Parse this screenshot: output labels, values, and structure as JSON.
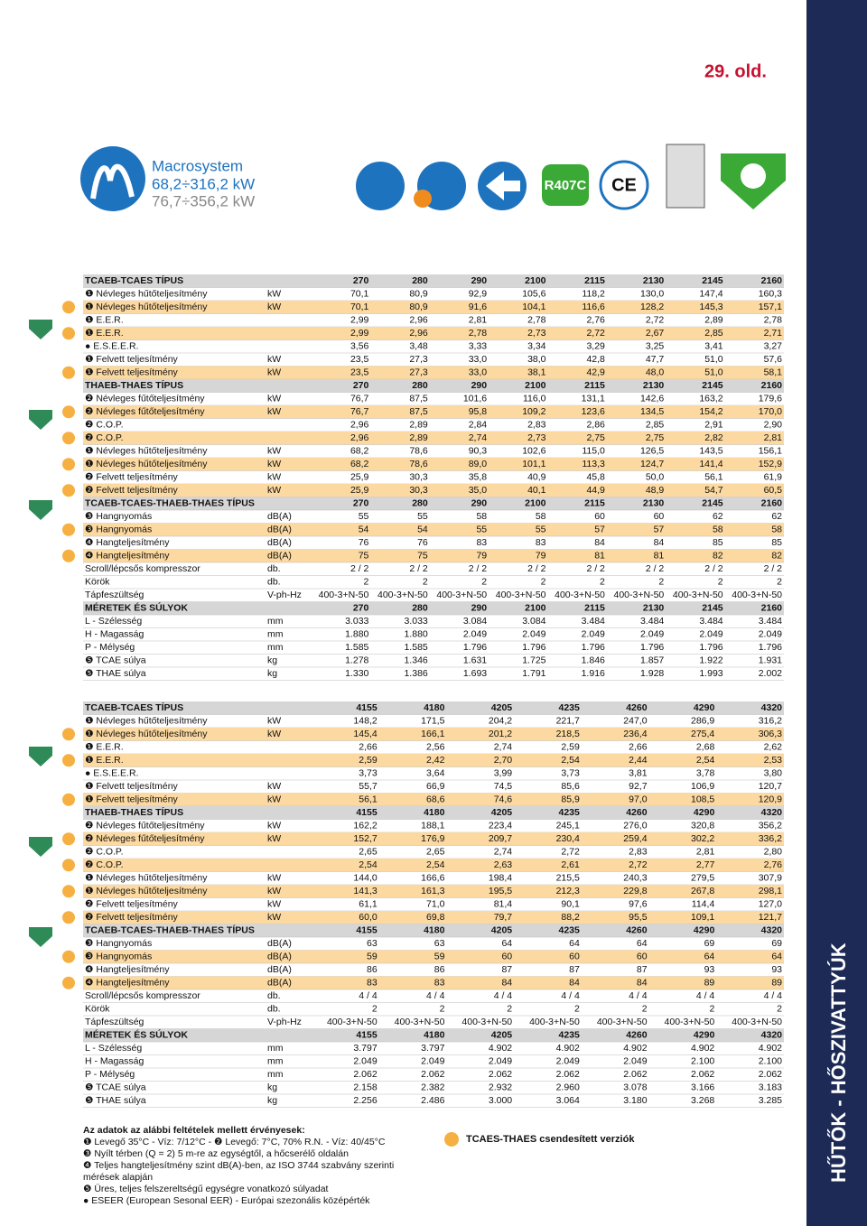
{
  "header": {
    "page": "29. old.",
    "brand": "Macrosystem",
    "range_cooling": "68,2÷316,2 kW",
    "range_heating": "76,7÷356,2 kW",
    "refrigerant": "R407C",
    "side": "HŰTŐK - HŐSZIVATTYÚK"
  },
  "tables": [
    {
      "rows": [
        {
          "header": true,
          "label": "TCAEB-TCAES TÍPUS",
          "values": [
            "270",
            "280",
            "290",
            "2100",
            "2115",
            "2130",
            "2145",
            "2160"
          ]
        },
        {
          "label": "❶ Névleges hűtőteljesítmény",
          "unit": "kW",
          "values": [
            "70,1",
            "80,9",
            "92,9",
            "105,6",
            "118,2",
            "130,0",
            "147,4",
            "160,3"
          ]
        },
        {
          "highlight": true,
          "label": "❶ Névleges hűtőteljesítmény",
          "unit": "kW",
          "values": [
            "70,1",
            "80,9",
            "91,6",
            "104,1",
            "116,6",
            "128,2",
            "145,3",
            "157,1"
          ]
        },
        {
          "label": "❶ E.E.R.",
          "values": [
            "2,99",
            "2,96",
            "2,81",
            "2,78",
            "2,76",
            "2,72",
            "2,89",
            "2,78"
          ]
        },
        {
          "highlight": true,
          "label": "❶ E.E.R.",
          "values": [
            "2,99",
            "2,96",
            "2,78",
            "2,73",
            "2,72",
            "2,67",
            "2,85",
            "2,71"
          ]
        },
        {
          "label": "● E.S.E.E.R.",
          "values": [
            "3,56",
            "3,48",
            "3,33",
            "3,34",
            "3,29",
            "3,25",
            "3,41",
            "3,27"
          ]
        },
        {
          "label": "❶ Felvett teljesítmény",
          "unit": "kW",
          "values": [
            "23,5",
            "27,3",
            "33,0",
            "38,0",
            "42,8",
            "47,7",
            "51,0",
            "57,6"
          ]
        },
        {
          "highlight": true,
          "label": "❶ Felvett teljesítmény",
          "unit": "kW",
          "values": [
            "23,5",
            "27,3",
            "33,0",
            "38,1",
            "42,9",
            "48,0",
            "51,0",
            "58,1"
          ]
        },
        {
          "header": true,
          "label": "THAEB-THAES TÍPUS",
          "values": [
            "270",
            "280",
            "290",
            "2100",
            "2115",
            "2130",
            "2145",
            "2160"
          ]
        },
        {
          "label": "❷ Névleges fűtőteljesítmény",
          "unit": "kW",
          "values": [
            "76,7",
            "87,5",
            "101,6",
            "116,0",
            "131,1",
            "142,6",
            "163,2",
            "179,6"
          ]
        },
        {
          "highlight": true,
          "label": "❷ Névleges fűtőteljesítmény",
          "unit": "kW",
          "values": [
            "76,7",
            "87,5",
            "95,8",
            "109,2",
            "123,6",
            "134,5",
            "154,2",
            "170,0"
          ]
        },
        {
          "label": "❷ C.O.P.",
          "values": [
            "2,96",
            "2,89",
            "2,84",
            "2,83",
            "2,86",
            "2,85",
            "2,91",
            "2,90"
          ]
        },
        {
          "highlight": true,
          "label": "❷ C.O.P.",
          "values": [
            "2,96",
            "2,89",
            "2,74",
            "2,73",
            "2,75",
            "2,75",
            "2,82",
            "2,81"
          ]
        },
        {
          "label": "❶ Névleges hűtőteljesítmény",
          "unit": "kW",
          "values": [
            "68,2",
            "78,6",
            "90,3",
            "102,6",
            "115,0",
            "126,5",
            "143,5",
            "156,1"
          ]
        },
        {
          "highlight": true,
          "label": "❶ Névleges hűtőteljesítmény",
          "unit": "kW",
          "values": [
            "68,2",
            "78,6",
            "89,0",
            "101,1",
            "113,3",
            "124,7",
            "141,4",
            "152,9"
          ]
        },
        {
          "label": "❷ Felvett teljesítmény",
          "unit": "kW",
          "values": [
            "25,9",
            "30,3",
            "35,8",
            "40,9",
            "45,8",
            "50,0",
            "56,1",
            "61,9"
          ]
        },
        {
          "highlight": true,
          "label": "❷ Felvett teljesítmény",
          "unit": "kW",
          "values": [
            "25,9",
            "30,3",
            "35,0",
            "40,1",
            "44,9",
            "48,9",
            "54,7",
            "60,5"
          ]
        },
        {
          "header": true,
          "label": "TCAEB-TCAES-THAEB-THAES TÍPUS",
          "values": [
            "270",
            "280",
            "290",
            "2100",
            "2115",
            "2130",
            "2145",
            "2160"
          ]
        },
        {
          "label": "❸ Hangnyomás",
          "unit": "dB(A)",
          "values": [
            "55",
            "55",
            "58",
            "58",
            "60",
            "60",
            "62",
            "62"
          ]
        },
        {
          "highlight": true,
          "label": "❸ Hangnyomás",
          "unit": "dB(A)",
          "values": [
            "54",
            "54",
            "55",
            "55",
            "57",
            "57",
            "58",
            "58"
          ]
        },
        {
          "label": "❹ Hangteljesítmény",
          "unit": "dB(A)",
          "values": [
            "76",
            "76",
            "83",
            "83",
            "84",
            "84",
            "85",
            "85"
          ]
        },
        {
          "highlight": true,
          "label": "❹ Hangteljesítmény",
          "unit": "dB(A)",
          "values": [
            "75",
            "75",
            "79",
            "79",
            "81",
            "81",
            "82",
            "82"
          ]
        },
        {
          "label": "Scroll/lépcsős kompresszor",
          "unit": "db.",
          "values": [
            "2 / 2",
            "2 / 2",
            "2 / 2",
            "2 / 2",
            "2 / 2",
            "2 / 2",
            "2 / 2",
            "2 / 2"
          ]
        },
        {
          "label": "Körök",
          "unit": "db.",
          "values": [
            "2",
            "2",
            "2",
            "2",
            "2",
            "2",
            "2",
            "2"
          ]
        },
        {
          "label": "Tápfeszültség",
          "unit": "V-ph-Hz",
          "values": [
            "400-3+N-50",
            "400-3+N-50",
            "400-3+N-50",
            "400-3+N-50",
            "400-3+N-50",
            "400-3+N-50",
            "400-3+N-50",
            "400-3+N-50"
          ]
        },
        {
          "header": true,
          "label": "MÉRETEK ÉS SÚLYOK",
          "values": [
            "270",
            "280",
            "290",
            "2100",
            "2115",
            "2130",
            "2145",
            "2160"
          ]
        },
        {
          "label": "L - Szélesség",
          "unit": "mm",
          "values": [
            "3.033",
            "3.033",
            "3.084",
            "3.084",
            "3.484",
            "3.484",
            "3.484",
            "3.484"
          ]
        },
        {
          "label": "H - Magasság",
          "unit": "mm",
          "values": [
            "1.880",
            "1.880",
            "2.049",
            "2.049",
            "2.049",
            "2.049",
            "2.049",
            "2.049"
          ]
        },
        {
          "label": "P - Mélység",
          "unit": "mm",
          "values": [
            "1.585",
            "1.585",
            "1.796",
            "1.796",
            "1.796",
            "1.796",
            "1.796",
            "1.796"
          ]
        },
        {
          "label": "❺ TCAE súlya",
          "unit": "kg",
          "values": [
            "1.278",
            "1.346",
            "1.631",
            "1.725",
            "1.846",
            "1.857",
            "1.922",
            "1.931"
          ]
        },
        {
          "label": "❺ THAE súlya",
          "unit": "kg",
          "values": [
            "1.330",
            "1.386",
            "1.693",
            "1.791",
            "1.916",
            "1.928",
            "1.993",
            "2.002"
          ]
        }
      ]
    },
    {
      "rows": [
        {
          "header": true,
          "label": "TCAEB-TCAES TÍPUS",
          "values": [
            "4155",
            "4180",
            "4205",
            "4235",
            "4260",
            "4290",
            "4320"
          ]
        },
        {
          "label": "❶ Névleges hűtőteljesítmény",
          "unit": "kW",
          "values": [
            "148,2",
            "171,5",
            "204,2",
            "221,7",
            "247,0",
            "286,9",
            "316,2"
          ]
        },
        {
          "highlight": true,
          "label": "❶ Névleges hűtőteljesítmény",
          "unit": "kW",
          "values": [
            "145,4",
            "166,1",
            "201,2",
            "218,5",
            "236,4",
            "275,4",
            "306,3"
          ]
        },
        {
          "label": "❶ E.E.R.",
          "values": [
            "2,66",
            "2,56",
            "2,74",
            "2,59",
            "2,66",
            "2,68",
            "2,62"
          ]
        },
        {
          "highlight": true,
          "label": "❶ E.E.R.",
          "values": [
            "2,59",
            "2,42",
            "2,70",
            "2,54",
            "2,44",
            "2,54",
            "2,53"
          ]
        },
        {
          "label": "● E.S.E.E.R.",
          "values": [
            "3,73",
            "3,64",
            "3,99",
            "3,73",
            "3,81",
            "3,78",
            "3,80"
          ]
        },
        {
          "label": "❶ Felvett teljesítmény",
          "unit": "kW",
          "values": [
            "55,7",
            "66,9",
            "74,5",
            "85,6",
            "92,7",
            "106,9",
            "120,7"
          ]
        },
        {
          "highlight": true,
          "label": "❶ Felvett teljesítmény",
          "unit": "kW",
          "values": [
            "56,1",
            "68,6",
            "74,6",
            "85,9",
            "97,0",
            "108,5",
            "120,9"
          ]
        },
        {
          "header": true,
          "label": "THAEB-THAES TÍPUS",
          "values": [
            "4155",
            "4180",
            "4205",
            "4235",
            "4260",
            "4290",
            "4320"
          ]
        },
        {
          "label": "❷ Névleges fűtőteljesítmény",
          "unit": "kW",
          "values": [
            "162,2",
            "188,1",
            "223,4",
            "245,1",
            "276,0",
            "320,8",
            "356,2"
          ]
        },
        {
          "highlight": true,
          "label": "❷ Névleges fűtőteljesítmény",
          "unit": "kW",
          "values": [
            "152,7",
            "176,9",
            "209,7",
            "230,4",
            "259,4",
            "302,2",
            "336,2"
          ]
        },
        {
          "label": "❷ C.O.P.",
          "values": [
            "2,65",
            "2,65",
            "2,74",
            "2,72",
            "2,83",
            "2,81",
            "2,80"
          ]
        },
        {
          "highlight": true,
          "label": "❷ C.O.P.",
          "values": [
            "2,54",
            "2,54",
            "2,63",
            "2,61",
            "2,72",
            "2,77",
            "2,76"
          ]
        },
        {
          "label": "❶ Névleges hűtőteljesítmény",
          "unit": "kW",
          "values": [
            "144,0",
            "166,6",
            "198,4",
            "215,5",
            "240,3",
            "279,5",
            "307,9"
          ]
        },
        {
          "highlight": true,
          "label": "❶ Névleges hűtőteljesítmény",
          "unit": "kW",
          "values": [
            "141,3",
            "161,3",
            "195,5",
            "212,3",
            "229,8",
            "267,8",
            "298,1"
          ]
        },
        {
          "label": "❷ Felvett teljesítmény",
          "unit": "kW",
          "values": [
            "61,1",
            "71,0",
            "81,4",
            "90,1",
            "97,6",
            "114,4",
            "127,0"
          ]
        },
        {
          "highlight": true,
          "label": "❷ Felvett teljesítmény",
          "unit": "kW",
          "values": [
            "60,0",
            "69,8",
            "79,7",
            "88,2",
            "95,5",
            "109,1",
            "121,7"
          ]
        },
        {
          "header": true,
          "label": "TCAEB-TCAES-THAEB-THAES TÍPUS",
          "values": [
            "4155",
            "4180",
            "4205",
            "4235",
            "4260",
            "4290",
            "4320"
          ]
        },
        {
          "label": "❸ Hangnyomás",
          "unit": "dB(A)",
          "values": [
            "63",
            "63",
            "64",
            "64",
            "64",
            "69",
            "69"
          ]
        },
        {
          "highlight": true,
          "label": "❸ Hangnyomás",
          "unit": "dB(A)",
          "values": [
            "59",
            "59",
            "60",
            "60",
            "60",
            "64",
            "64"
          ]
        },
        {
          "label": "❹ Hangteljesítmény",
          "unit": "dB(A)",
          "values": [
            "86",
            "86",
            "87",
            "87",
            "87",
            "93",
            "93"
          ]
        },
        {
          "highlight": true,
          "label": "❹ Hangteljesítmény",
          "unit": "dB(A)",
          "values": [
            "83",
            "83",
            "84",
            "84",
            "84",
            "89",
            "89"
          ]
        },
        {
          "label": "Scroll/lépcsős kompresszor",
          "unit": "db.",
          "values": [
            "4 / 4",
            "4 / 4",
            "4 / 4",
            "4 / 4",
            "4 / 4",
            "4 / 4",
            "4 / 4"
          ]
        },
        {
          "label": "Körök",
          "unit": "db.",
          "values": [
            "2",
            "2",
            "2",
            "2",
            "2",
            "2",
            "2"
          ]
        },
        {
          "label": "Tápfeszültség",
          "unit": "V-ph-Hz",
          "values": [
            "400-3+N-50",
            "400-3+N-50",
            "400-3+N-50",
            "400-3+N-50",
            "400-3+N-50",
            "400-3+N-50",
            "400-3+N-50"
          ]
        },
        {
          "header": true,
          "label": "MÉRETEK ÉS SÚLYOK",
          "values": [
            "4155",
            "4180",
            "4205",
            "4235",
            "4260",
            "4290",
            "4320"
          ]
        },
        {
          "label": "L - Szélesség",
          "unit": "mm",
          "values": [
            "3.797",
            "3.797",
            "4.902",
            "4.902",
            "4.902",
            "4.902",
            "4.902"
          ]
        },
        {
          "label": "H - Magasság",
          "unit": "mm",
          "values": [
            "2.049",
            "2.049",
            "2.049",
            "2.049",
            "2.049",
            "2.100",
            "2.100"
          ]
        },
        {
          "label": "P - Mélység",
          "unit": "mm",
          "values": [
            "2.062",
            "2.062",
            "2.062",
            "2.062",
            "2.062",
            "2.062",
            "2.062"
          ]
        },
        {
          "label": "❺ TCAE súlya",
          "unit": "kg",
          "values": [
            "2.158",
            "2.382",
            "2.932",
            "2.960",
            "3.078",
            "3.166",
            "3.183"
          ]
        },
        {
          "label": "❺ THAE súlya",
          "unit": "kg",
          "values": [
            "2.256",
            "2.486",
            "3.000",
            "3.064",
            "3.180",
            "3.268",
            "3.285"
          ]
        }
      ]
    }
  ],
  "notes": {
    "title": "Az adatok az alábbi feltételek mellett érvényesek:",
    "items": [
      "❶ Levegő 35°C - Víz: 7/12°C - ❷ Levegő: 7°C, 70% R.N. - Víz: 40/45°C",
      "❸ Nyílt térben (Q = 2) 5 m-re az egységtől, a hőcserélő oldalán",
      "❹ Teljes hangteljesítmény szint dB(A)-ben, az ISO 3744 szabvány szerinti mérések alapján",
      "❺ Üres, teljes felszereltségű egységre vonatkozó súlyadat",
      "● ESEER (European Sesonal EER) - Európai szezonális középérték"
    ]
  },
  "legend": "TCAES-THAES csendesített verziók"
}
